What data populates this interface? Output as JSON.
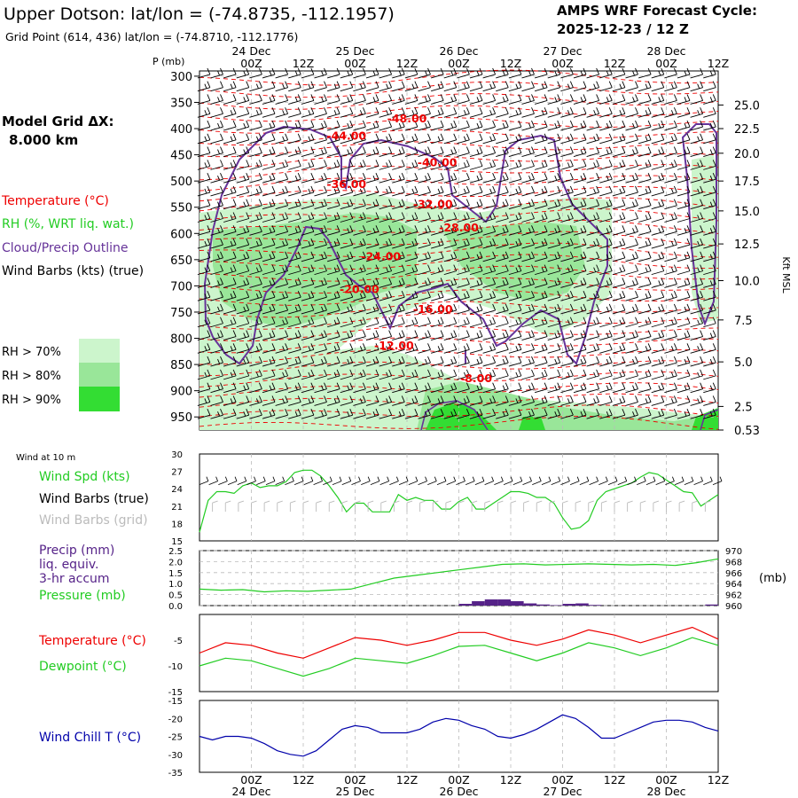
{
  "header": {
    "title": "Upper Dotson:  lat/lon = (-74.8735, -112.1957)",
    "grid_point": "Grid Point (614, 436) lat/lon = (-74.8710, -112.1776)",
    "cycle_label": "AMPS WRF Forecast Cycle:",
    "cycle_value": "2025-12-23 / 12  Z"
  },
  "time_axis": {
    "tick_labels": [
      "00Z",
      "12Z",
      "00Z",
      "12Z",
      "00Z",
      "12Z",
      "00Z",
      "12Z",
      "00Z",
      "12Z"
    ],
    "day_labels": [
      "24 Dec",
      "25 Dec",
      "26 Dec",
      "27 Dec",
      "28 Dec"
    ],
    "forecast_hours_range": [
      0,
      120
    ]
  },
  "legend_upper": {
    "model_grid": "Model Grid ΔX:",
    "model_grid_value": "8.000 km",
    "temperature": "Temperature (°C)",
    "rh": "RH (%, WRT liq. wat.)",
    "cloud": "Cloud/Precip Outline",
    "wind_barbs": "Wind Barbs (kts) (true)",
    "rh_levels": [
      {
        "label": "RH > 70%",
        "color": "#ccf5cc"
      },
      {
        "label": "RH > 80%",
        "color": "#99e699"
      },
      {
        "label": "RH > 90%",
        "color": "#33dd33"
      }
    ]
  },
  "legend_lower": {
    "wind10m": "Wind at 10 m",
    "wind_spd": "Wind Spd (kts)",
    "barbs_true": "Wind Barbs (true)",
    "barbs_grid": "Wind Barbs (grid)",
    "precip1": "Precip (mm)",
    "precip2": "liq. equiv.",
    "precip3": "3-hr accum",
    "pressure": "Pressure (mb)",
    "pressure_unit": "(mb)",
    "temperature": "Temperature (°C)",
    "dewpoint": "Dewpoint (°C)",
    "windchill": "Wind Chill T (°C)"
  },
  "colors": {
    "temperature": "#ee0000",
    "rh": "#22cc22",
    "cloud": "#663399",
    "windchill": "#0000aa",
    "grid_barbs": "#bbbbbb",
    "precip": "#552288"
  },
  "chart_data": [
    {
      "type": "heatmap",
      "name": "cross-section",
      "y_label": "P (mb)",
      "right_label": "Kft MSL",
      "p_levels": [
        300,
        350,
        400,
        450,
        500,
        550,
        600,
        650,
        700,
        750,
        800,
        850,
        900,
        950
      ],
      "p_range": [
        290,
        975
      ],
      "kft_ticks": [
        {
          "p": 355,
          "label": "25.0"
        },
        {
          "p": 400,
          "label": "22.5"
        },
        {
          "p": 447,
          "label": "20.0"
        },
        {
          "p": 500,
          "label": "17.5"
        },
        {
          "p": 557,
          "label": "15.0"
        },
        {
          "p": 620,
          "label": "12.5"
        },
        {
          "p": 690,
          "label": "10.0"
        },
        {
          "p": 765,
          "label": "7.5"
        },
        {
          "p": 845,
          "label": "5.0"
        },
        {
          "p": 930,
          "label": "2.5"
        },
        {
          "p": 975,
          "label": "0.53"
        }
      ],
      "temperature_labels": [
        {
          "t": 48,
          "p": 380,
          "label": "-48.00"
        },
        {
          "t": 34,
          "p": 413,
          "label": "-44.00"
        },
        {
          "t": 55,
          "p": 463,
          "label": "-40.00"
        },
        {
          "t": 34,
          "p": 505,
          "label": "-36.00"
        },
        {
          "t": 54,
          "p": 543,
          "label": "-32.00"
        },
        {
          "t": 60,
          "p": 588,
          "label": "-28.00"
        },
        {
          "t": 42,
          "p": 643,
          "label": "-24.00"
        },
        {
          "t": 37,
          "p": 705,
          "label": "-20.00"
        },
        {
          "t": 54,
          "p": 743,
          "label": "-16.00"
        },
        {
          "t": 45,
          "p": 813,
          "label": "-12.00"
        },
        {
          "t": 64,
          "p": 875,
          "label": "-8.00"
        }
      ]
    },
    {
      "type": "line",
      "name": "wind-speed",
      "ylim": [
        15,
        30
      ],
      "yticks": [
        15,
        18,
        21,
        24,
        27,
        30
      ],
      "x": [
        0,
        2,
        4,
        6,
        8,
        10,
        12,
        14,
        16,
        18,
        20,
        22,
        24,
        26,
        28,
        30,
        32,
        34,
        36,
        38,
        40,
        42,
        44,
        46,
        48,
        50,
        52,
        54,
        56,
        58,
        60,
        62,
        64,
        66,
        68,
        70,
        72,
        74,
        76,
        78,
        80,
        82,
        84,
        86,
        88,
        90,
        92,
        94,
        96,
        98,
        100,
        102,
        104,
        106,
        108,
        110,
        112,
        114,
        116,
        118,
        120
      ],
      "values": [
        16.5,
        22,
        23.5,
        23.5,
        23.2,
        24.5,
        25,
        24.2,
        24.5,
        24.5,
        25.2,
        26.8,
        27.2,
        27.2,
        26.2,
        24.5,
        22.5,
        20,
        21.5,
        21.5,
        20,
        20,
        20,
        23,
        22,
        22.5,
        22,
        22,
        20.5,
        20.5,
        21.8,
        22.5,
        20.5,
        20.5,
        21.5,
        22.5,
        23.5,
        23.5,
        23.2,
        22.5,
        22.5,
        21.5,
        19,
        17,
        17.3,
        18.5,
        22,
        23.5,
        24,
        24.5,
        25,
        26,
        26.8,
        26.5,
        25.5,
        24.5,
        23.5,
        23.3,
        21,
        22,
        23
      ]
    },
    {
      "type": "bar",
      "name": "precip",
      "ylim": [
        0,
        2.5
      ],
      "yticks": [
        0.0,
        0.5,
        1.0,
        1.5,
        2.0,
        2.5
      ],
      "x": [
        63,
        66,
        69,
        72,
        75,
        78,
        81,
        84,
        87,
        90,
        93,
        96,
        99,
        102,
        105,
        108,
        111,
        114,
        117,
        120
      ],
      "values": [
        0.08,
        0.2,
        0.28,
        0.28,
        0.2,
        0.1,
        0.05,
        0.02,
        0.08,
        0.1,
        0.03,
        0,
        0,
        0,
        0,
        0,
        0,
        0,
        0,
        0.05
      ]
    },
    {
      "type": "line",
      "name": "pressure",
      "ylim": [
        960,
        970
      ],
      "yticks": [
        960,
        962,
        964,
        966,
        968,
        970
      ],
      "x": [
        0,
        5,
        10,
        15,
        20,
        25,
        30,
        35,
        40,
        45,
        50,
        55,
        60,
        65,
        70,
        75,
        80,
        85,
        90,
        95,
        100,
        105,
        110,
        115,
        120
      ],
      "values": [
        963,
        962.8,
        962.9,
        962.5,
        962.7,
        962.6,
        962.8,
        963,
        964,
        965,
        965.5,
        966,
        966.5,
        967,
        967.5,
        967.6,
        967.4,
        967.5,
        967.6,
        967.5,
        967.4,
        967.5,
        967.3,
        967.8,
        968.5
      ]
    },
    {
      "type": "line",
      "name": "temperature-dewpoint",
      "ylim": [
        -15,
        0
      ],
      "yticks": [
        -15,
        -10,
        -5
      ],
      "x": [
        0,
        6,
        12,
        18,
        24,
        30,
        36,
        42,
        48,
        54,
        60,
        66,
        72,
        78,
        84,
        90,
        96,
        102,
        108,
        114,
        120
      ],
      "series": [
        {
          "name": "Temperature",
          "values": [
            -7.5,
            -5.5,
            -6,
            -7.5,
            -8.5,
            -6.5,
            -4.5,
            -5,
            -6,
            -5,
            -3.5,
            -3.5,
            -5,
            -6,
            -4.8,
            -3,
            -4,
            -5.5,
            -4,
            -2.5,
            -4.8
          ]
        },
        {
          "name": "Dewpoint",
          "values": [
            -10,
            -8.5,
            -9,
            -10.5,
            -12,
            -10.5,
            -8.5,
            -9,
            -9.5,
            -8,
            -6.2,
            -6,
            -7.5,
            -9,
            -7.5,
            -5.5,
            -6.5,
            -8,
            -6.5,
            -4.5,
            -6
          ]
        }
      ]
    },
    {
      "type": "line",
      "name": "wind-chill",
      "ylim": [
        -35,
        -15
      ],
      "yticks": [
        -35,
        -30,
        -25,
        -20,
        -15
      ],
      "x": [
        0,
        3,
        6,
        9,
        12,
        15,
        18,
        21,
        24,
        27,
        30,
        33,
        36,
        39,
        42,
        45,
        48,
        51,
        54,
        57,
        60,
        63,
        66,
        69,
        72,
        75,
        78,
        81,
        84,
        87,
        90,
        93,
        96,
        99,
        102,
        105,
        108,
        111,
        114,
        117,
        120
      ],
      "values": [
        -25,
        -26,
        -25,
        -25,
        -25.5,
        -27,
        -29,
        -30,
        -30.5,
        -29,
        -26,
        -23,
        -22,
        -22.5,
        -24,
        -24,
        -24,
        -23,
        -21,
        -20,
        -20.5,
        -22,
        -23,
        -25,
        -25.5,
        -24.5,
        -23,
        -21,
        -19,
        -20,
        -22.5,
        -25.5,
        -25.5,
        -24,
        -22.5,
        -21,
        -20.5,
        -20.5,
        -21,
        -22.5,
        -23.5
      ]
    }
  ]
}
